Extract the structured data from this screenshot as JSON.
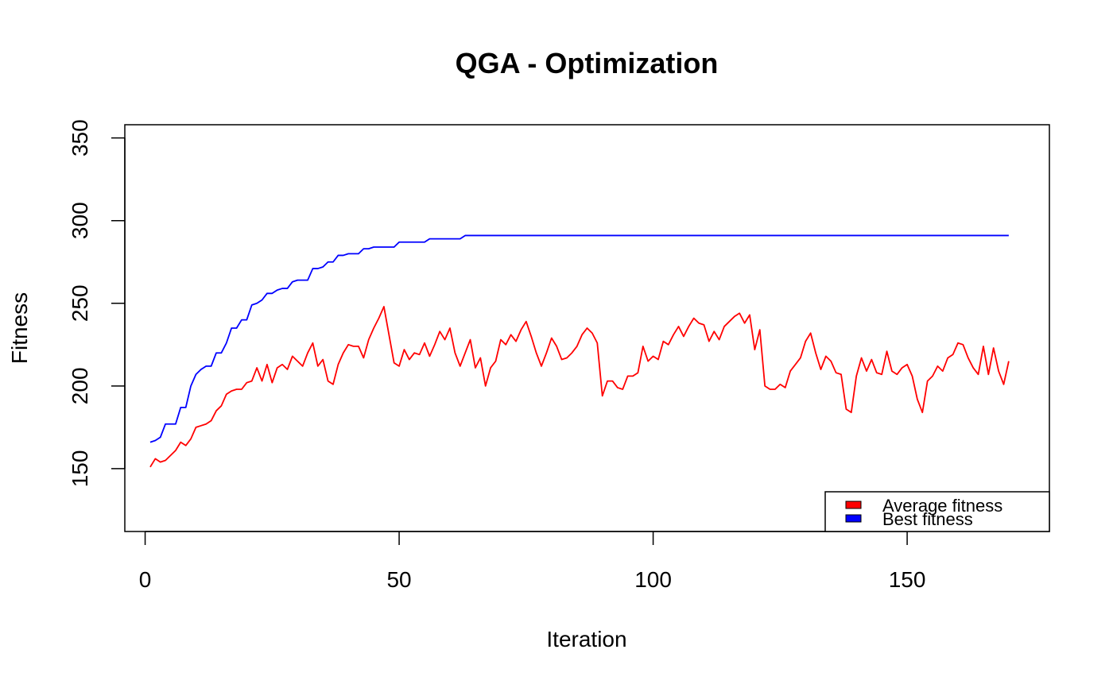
{
  "chart_data": {
    "type": "line",
    "title": "QGA - Optimization",
    "xlabel": "Iteration",
    "ylabel": "Fitness",
    "xlim": [
      -4,
      178
    ],
    "ylim": [
      112,
      358
    ],
    "xticks": [
      0,
      50,
      100,
      150
    ],
    "yticks": [
      150,
      200,
      250,
      300,
      350
    ],
    "grid": false,
    "legend_position": "bottom-right",
    "series": [
      {
        "name": "Average fitness",
        "color": "#ff0000",
        "x": [
          1,
          2,
          3,
          4,
          5,
          6,
          7,
          8,
          9,
          10,
          11,
          12,
          13,
          14,
          15,
          16,
          17,
          18,
          19,
          20,
          21,
          22,
          23,
          24,
          25,
          26,
          27,
          28,
          29,
          30,
          31,
          32,
          33,
          34,
          35,
          36,
          37,
          38,
          39,
          40,
          41,
          42,
          43,
          44,
          45,
          46,
          47,
          48,
          49,
          50,
          51,
          52,
          53,
          54,
          55,
          56,
          57,
          58,
          59,
          60,
          61,
          62,
          63,
          64,
          65,
          66,
          67,
          68,
          69,
          70,
          71,
          72,
          73,
          74,
          75,
          76,
          77,
          78,
          79,
          80,
          81,
          82,
          83,
          84,
          85,
          86,
          87,
          88,
          89,
          90,
          91,
          92,
          93,
          94,
          95,
          96,
          97,
          98,
          99,
          100,
          101,
          102,
          103,
          104,
          105,
          106,
          107,
          108,
          109,
          110,
          111,
          112,
          113,
          114,
          115,
          116,
          117,
          118,
          119,
          120,
          121,
          122,
          123,
          124,
          125,
          126,
          127,
          128,
          129,
          130,
          131,
          132,
          133,
          134,
          135,
          136,
          137,
          138,
          139,
          140,
          141,
          142,
          143,
          144,
          145,
          146,
          147,
          148,
          149,
          150,
          151,
          152,
          153,
          154,
          155,
          156,
          157,
          158,
          159,
          160,
          161,
          162,
          163,
          164,
          165,
          166,
          167,
          168,
          169,
          170
        ],
        "values": [
          151,
          156,
          154,
          155,
          158,
          161,
          166,
          164,
          168,
          175,
          176,
          177,
          179,
          185,
          188,
          195,
          197,
          198,
          198,
          202,
          203,
          211,
          203,
          213,
          202,
          211,
          213,
          210,
          218,
          215,
          212,
          220,
          226,
          212,
          216,
          203,
          201,
          213,
          220,
          225,
          224,
          224,
          217,
          228,
          235,
          241,
          248,
          231,
          214,
          212,
          222,
          216,
          220,
          219,
          226,
          218,
          225,
          233,
          228,
          235,
          220,
          212,
          220,
          228,
          211,
          217,
          200,
          211,
          215,
          228,
          225,
          231,
          227,
          234,
          239,
          230,
          220,
          212,
          220,
          229,
          224,
          216,
          217,
          220,
          224,
          231,
          235,
          232,
          226,
          194,
          203,
          203,
          199,
          198,
          206,
          206,
          208,
          224,
          215,
          218,
          216,
          227,
          225,
          231,
          236,
          230,
          236,
          241,
          238,
          237,
          227,
          233,
          228,
          236,
          239,
          242,
          244,
          238,
          243,
          222,
          234,
          200,
          198,
          198,
          201,
          199,
          209,
          213,
          217,
          227,
          232,
          220,
          210,
          218,
          215,
          208,
          207,
          186,
          184,
          206,
          217,
          209,
          216,
          208,
          207,
          221,
          209,
          207,
          211,
          213,
          206,
          192,
          184,
          203,
          206,
          212,
          209,
          217,
          219,
          226,
          225,
          217,
          211,
          207,
          224,
          207,
          223,
          209,
          201,
          215
        ]
      },
      {
        "name": "Best fitness",
        "color": "#0000ff",
        "x": [
          1,
          2,
          3,
          4,
          5,
          6,
          7,
          8,
          9,
          10,
          11,
          12,
          13,
          14,
          15,
          16,
          17,
          18,
          19,
          20,
          21,
          22,
          23,
          24,
          25,
          26,
          27,
          28,
          29,
          30,
          31,
          32,
          33,
          34,
          35,
          36,
          37,
          38,
          39,
          40,
          41,
          42,
          43,
          44,
          45,
          46,
          47,
          48,
          49,
          50,
          51,
          52,
          53,
          54,
          55,
          56,
          57,
          58,
          59,
          60,
          61,
          62,
          63,
          64,
          65,
          66,
          67,
          68,
          69,
          70,
          71,
          72,
          73,
          74,
          75,
          76,
          77,
          78,
          79,
          80,
          81,
          82,
          83,
          84,
          85,
          86,
          87,
          88,
          89,
          90,
          91,
          92,
          93,
          94,
          95,
          96,
          97,
          98,
          99,
          100,
          101,
          102,
          103,
          104,
          105,
          106,
          107,
          108,
          109,
          110,
          111,
          112,
          113,
          114,
          115,
          116,
          117,
          118,
          119,
          120,
          121,
          122,
          123,
          124,
          125,
          126,
          127,
          128,
          129,
          130,
          131,
          132,
          133,
          134,
          135,
          136,
          137,
          138,
          139,
          140,
          141,
          142,
          143,
          144,
          145,
          146,
          147,
          148,
          149,
          150,
          151,
          152,
          153,
          154,
          155,
          156,
          157,
          158,
          159,
          160,
          161,
          162,
          163,
          164,
          165,
          166,
          167,
          168,
          169,
          170
        ],
        "values": [
          166,
          167,
          169,
          177,
          177,
          177,
          187,
          187,
          200,
          207,
          210,
          212,
          212,
          220,
          220,
          226,
          235,
          235,
          240,
          240,
          249,
          250,
          252,
          256,
          256,
          258,
          259,
          259,
          263,
          264,
          264,
          264,
          271,
          271,
          272,
          275,
          275,
          279,
          279,
          280,
          280,
          280,
          283,
          283,
          284,
          284,
          284,
          284,
          284,
          287,
          287,
          287,
          287,
          287,
          287,
          289,
          289,
          289,
          289,
          289,
          289,
          289,
          291,
          291,
          291,
          291,
          291,
          291,
          291,
          291,
          291,
          291,
          291,
          291,
          291,
          291,
          291,
          291,
          291,
          291,
          291,
          291,
          291,
          291,
          291,
          291,
          291,
          291,
          291,
          291,
          291,
          291,
          291,
          291,
          291,
          291,
          291,
          291,
          291,
          291,
          291,
          291,
          291,
          291,
          291,
          291,
          291,
          291,
          291,
          291,
          291,
          291,
          291,
          291,
          291,
          291,
          291,
          291,
          291,
          291,
          291,
          291,
          291,
          291,
          291,
          291,
          291,
          291,
          291,
          291,
          291,
          291,
          291,
          291,
          291,
          291,
          291,
          291,
          291,
          291,
          291,
          291,
          291,
          291,
          291,
          291,
          291,
          291,
          291,
          291,
          291,
          291,
          291,
          291,
          291,
          291,
          291,
          291,
          291,
          291,
          291,
          291,
          291,
          291,
          291,
          291,
          291,
          291,
          291,
          291
        ]
      }
    ]
  }
}
